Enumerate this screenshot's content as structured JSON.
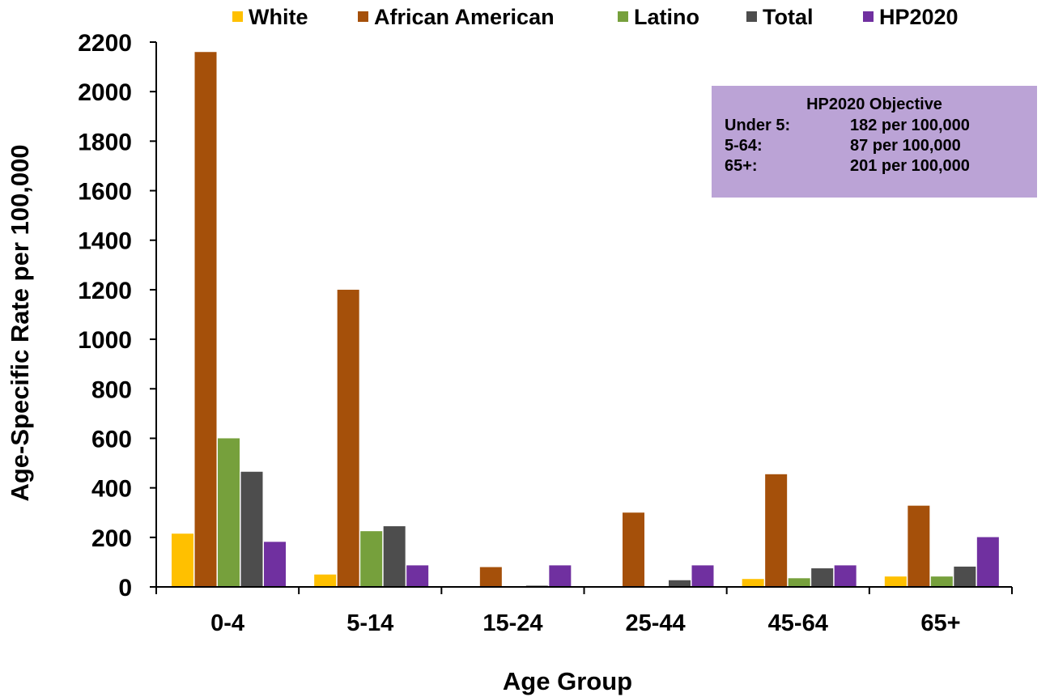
{
  "chart_data": {
    "type": "bar",
    "xlabel": "Age Group",
    "ylabel": "Age-Specific Rate per 100,000",
    "ylim": [
      0,
      2200
    ],
    "yticks": [
      0,
      200,
      400,
      600,
      800,
      1000,
      1200,
      1400,
      1600,
      1800,
      2000,
      2200
    ],
    "grid": false,
    "legend_position": "top",
    "categories": [
      "0-4",
      "5-14",
      "15-24",
      "25-44",
      "45-64",
      "65+"
    ],
    "series": [
      {
        "name": "White",
        "color": "#ffc000",
        "values": [
          215,
          50,
          0,
          0,
          32,
          42
        ]
      },
      {
        "name": "African American",
        "color": "#a5500a",
        "values": [
          2160,
          1200,
          80,
          300,
          455,
          328
        ]
      },
      {
        "name": "Latino",
        "color": "#76a03c",
        "values": [
          600,
          225,
          0,
          0,
          35,
          42
        ]
      },
      {
        "name": "Total",
        "color": "#4d4d4d",
        "values": [
          465,
          245,
          5,
          27,
          75,
          82
        ]
      },
      {
        "name": "HP2020",
        "color": "#7030a0",
        "values": [
          182,
          87,
          87,
          87,
          87,
          201
        ]
      }
    ],
    "annotation": {
      "title": "HP2020 Objective",
      "rows": [
        {
          "label": "Under 5:",
          "value": "182 per 100,000"
        },
        {
          "label": "5-64:",
          "value": "87 per 100,000"
        },
        {
          "label": "65+:",
          "value": "201 per 100,000"
        }
      ],
      "background": "#bba3d6"
    }
  }
}
